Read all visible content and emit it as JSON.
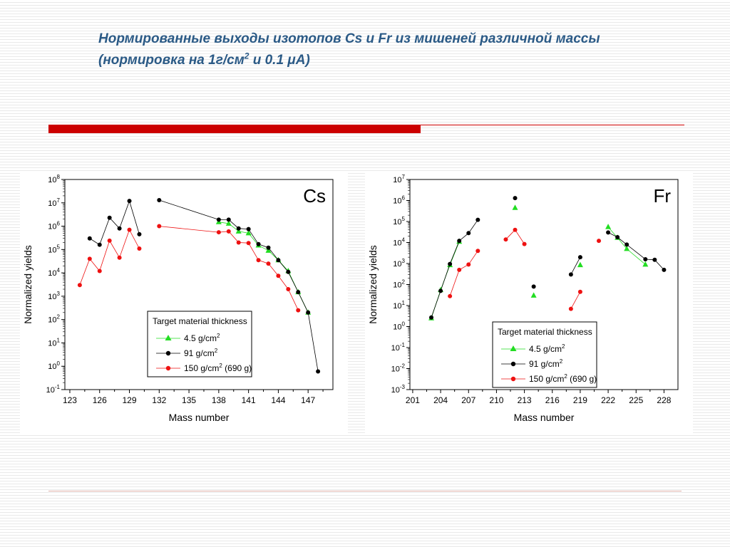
{
  "slide": {
    "title_line1": "Нормированные выходы изотопов Cs и Fr из мишеней различной массы",
    "title_line2_pre": "(нормировка на 1г/см",
    "title_line2_sup": "2",
    "title_line2_post": " и 0.1 μA)"
  },
  "colors": {
    "accent_bar": "#cc0000",
    "title": "#2b5a86",
    "series_green": "#22dd22",
    "series_black": "#000000",
    "series_red": "#ee1111"
  },
  "chart_data": [
    {
      "type": "scatter",
      "label": "Cs",
      "xlabel": "Mass number",
      "ylabel": "Normalized yields",
      "xlim": [
        122.5,
        149.5
      ],
      "ylim_exp": [
        -1,
        8
      ],
      "yscale": "log",
      "xticks": [
        123,
        126,
        129,
        132,
        135,
        138,
        141,
        144,
        147
      ],
      "yticks_exp": [
        -1,
        0,
        1,
        2,
        3,
        4,
        5,
        6,
        7,
        8
      ],
      "legend": {
        "title": "Target material thickness",
        "entries": [
          {
            "label": "4.5 g/cm",
            "sup": "2",
            "suffix": ""
          },
          {
            "label": "91 g/cm",
            "sup": "2",
            "suffix": ""
          },
          {
            "label": "150 g/cm",
            "sup": "2",
            "suffix": " (690 g)"
          }
        ],
        "placement": "bottom-center"
      },
      "series": [
        {
          "marker": "triangle",
          "color": "#22dd22",
          "points": [
            [
              138,
              1500000.0
            ],
            [
              139,
              1300000.0
            ],
            [
              140,
              600000.0
            ],
            [
              141,
              500000.0
            ],
            [
              142,
              150000.0
            ],
            [
              143,
              90000.0
            ],
            [
              144,
              35000.0
            ],
            [
              145,
              12000.0
            ],
            [
              146,
              1500.0
            ],
            [
              147,
              200
            ]
          ]
        },
        {
          "marker": "circle",
          "color": "#000000",
          "points": [
            [
              125,
              300000.0
            ],
            [
              126,
              160000.0
            ],
            [
              127,
              2300000.0
            ],
            [
              128,
              800000.0
            ],
            [
              129,
              12000000.0
            ],
            [
              130,
              450000.0
            ],
            [
              null,
              null
            ],
            [
              132,
              13000000.0
            ],
            [
              138,
              1900000.0
            ],
            [
              139,
              1900000.0
            ],
            [
              140,
              800000.0
            ],
            [
              141,
              750000.0
            ],
            [
              142,
              170000.0
            ],
            [
              143,
              120000.0
            ],
            [
              144,
              35000.0
            ],
            [
              145,
              11000.0
            ],
            [
              146,
              1500.0
            ],
            [
              147,
              200
            ],
            [
              148,
              0.6
            ]
          ]
        },
        {
          "marker": "circle",
          "color": "#ee1111",
          "points": [
            [
              124,
              3000.0
            ],
            [
              125,
              40000.0
            ],
            [
              126,
              12000.0
            ],
            [
              127,
              240000.0
            ],
            [
              128,
              45000.0
            ],
            [
              129,
              700000.0
            ],
            [
              130,
              110000.0
            ],
            [
              null,
              null
            ],
            [
              132,
              1000000.0
            ],
            [
              138,
              550000.0
            ],
            [
              139,
              600000.0
            ],
            [
              140,
              200000.0
            ],
            [
              141,
              190000.0
            ],
            [
              142,
              35000.0
            ],
            [
              143,
              25000.0
            ],
            [
              144,
              7500.0
            ],
            [
              145,
              2000.0
            ],
            [
              146,
              250
            ]
          ]
        }
      ]
    },
    {
      "type": "scatter",
      "label": "Fr",
      "xlabel": "Mass number",
      "ylabel": "Normalized yields",
      "xlim": [
        200.7,
        229.5
      ],
      "ylim_exp": [
        -3,
        7
      ],
      "yscale": "log",
      "xticks": [
        201,
        204,
        207,
        210,
        213,
        216,
        219,
        222,
        225,
        228
      ],
      "yticks_exp": [
        -3,
        -2,
        -1,
        0,
        1,
        2,
        3,
        4,
        5,
        6,
        7
      ],
      "legend": {
        "title": "Target material thickness",
        "entries": [
          {
            "label": "4.5 g/cm",
            "sup": "2",
            "suffix": ""
          },
          {
            "label": "91 g/cm",
            "sup": "2",
            "suffix": ""
          },
          {
            "label": "150 g/cm",
            "sup": "2",
            "suffix": " (690 g)"
          }
        ],
        "placement": "bottom-center"
      },
      "series": [
        {
          "marker": "triangle",
          "color": "#22dd22",
          "points": [
            [
              203,
              2.5
            ],
            [
              204,
              55
            ],
            [
              205,
              850
            ],
            [
              206,
              11000.0
            ],
            [
              null,
              null
            ],
            [
              212,
              450000.0
            ],
            [
              null,
              null
            ],
            [
              214,
              30
            ],
            [
              null,
              null
            ],
            [
              219,
              850
            ],
            [
              null,
              null
            ],
            [
              222,
              55000.0
            ],
            [
              223,
              17000.0
            ],
            [
              224,
              5000.0
            ],
            [
              226,
              900
            ]
          ]
        },
        {
          "marker": "circle",
          "color": "#000000",
          "points": [
            [
              203,
              2.7
            ],
            [
              204,
              50
            ],
            [
              205,
              950
            ],
            [
              206,
              12000.0
            ],
            [
              207,
              28000.0
            ],
            [
              208,
              120000.0
            ],
            [
              null,
              null
            ],
            [
              212,
              1300000.0
            ],
            [
              null,
              null
            ],
            [
              214,
              80
            ],
            [
              null,
              null
            ],
            [
              218,
              300
            ],
            [
              219,
              2000.0
            ],
            [
              null,
              null
            ],
            [
              222,
              30000.0
            ],
            [
              223,
              18000.0
            ],
            [
              224,
              8000.0
            ],
            [
              226,
              1600.0
            ],
            [
              227,
              1500.0
            ],
            [
              228,
              500
            ]
          ]
        },
        {
          "marker": "circle",
          "color": "#ee1111",
          "points": [
            [
              205,
              28
            ],
            [
              206,
              500
            ],
            [
              207,
              900
            ],
            [
              208,
              4000.0
            ],
            [
              null,
              null
            ],
            [
              211,
              14000.0
            ],
            [
              212,
              40000.0
            ],
            [
              213,
              8500.0
            ],
            [
              null,
              null
            ],
            [
              218,
              7
            ],
            [
              219,
              45
            ],
            [
              null,
              null
            ],
            [
              221,
              12000.0
            ]
          ]
        }
      ]
    }
  ]
}
